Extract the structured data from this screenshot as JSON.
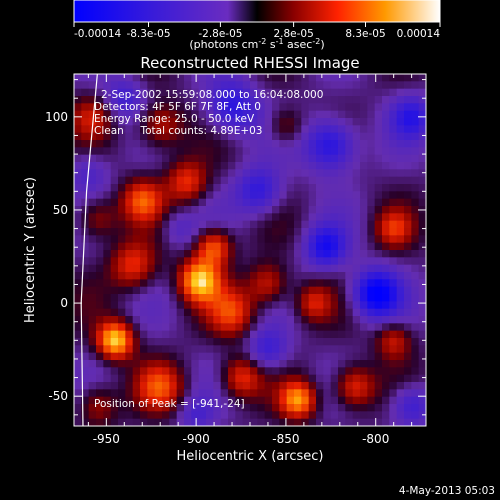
{
  "chart_data": {
    "type": "heatmap",
    "title": "Reconstructed RHESSI Image",
    "xlabel": "Heliocentric X (arcsec)",
    "ylabel": "Heliocentric Y (arcsec)",
    "xlim": [
      -968,
      -772
    ],
    "ylim": [
      -66,
      123
    ],
    "xticks": [
      -950,
      -900,
      -850,
      -800
    ],
    "yticks": [
      -50,
      0,
      50,
      100
    ],
    "colorbar": {
      "ticks": [
        "-0.00014",
        "-8.3e-05",
        "-2.8e-05",
        "2.8e-05",
        "8.3e-05",
        "0.00014"
      ],
      "values": [
        -0.00014,
        -8.3e-05,
        -2.8e-05,
        2.8e-05,
        8.3e-05,
        0.00014
      ],
      "units_prefix": "(photons cm",
      "units_exp1": "-2",
      "units_mid": " s",
      "units_exp2": "-1",
      "units_suffix": " asec",
      "units_exp3": "-2",
      "units_close": ")"
    },
    "annotations": [
      "2-Sep-2002 15:59:08.000 to 16:04:08.000",
      "Detectors: 4F 5F 6F 7F 8F, Att 0",
      "Energy Range: 25.0 - 50.0 keV",
      "Clean     Total counts: 4.89E+03"
    ],
    "peak_label": "Position of Peak = [-941,-24]",
    "sources": [
      {
        "x": -945,
        "y": -20,
        "w": 1.0,
        "r": 7
      },
      {
        "x": -898,
        "y": 12,
        "w": 0.95,
        "r": 8
      },
      {
        "x": -890,
        "y": 30,
        "w": 0.7,
        "r": 7
      },
      {
        "x": -935,
        "y": 20,
        "w": 0.55,
        "r": 9
      },
      {
        "x": -930,
        "y": 55,
        "w": 0.6,
        "r": 8
      },
      {
        "x": -905,
        "y": 65,
        "w": 0.55,
        "r": 8
      },
      {
        "x": -920,
        "y": 95,
        "w": 0.5,
        "r": 9
      },
      {
        "x": -958,
        "y": 100,
        "w": 0.35,
        "r": 8
      },
      {
        "x": -880,
        "y": -5,
        "w": 0.55,
        "r": 9
      },
      {
        "x": -860,
        "y": 10,
        "w": 0.5,
        "r": 8
      },
      {
        "x": -843,
        "y": -52,
        "w": 0.8,
        "r": 7
      },
      {
        "x": -875,
        "y": -40,
        "w": 0.55,
        "r": 8
      },
      {
        "x": -812,
        "y": -45,
        "w": 0.6,
        "r": 8
      },
      {
        "x": -790,
        "y": -20,
        "w": 0.45,
        "r": 7
      },
      {
        "x": -790,
        "y": 40,
        "w": 0.45,
        "r": 7
      },
      {
        "x": -835,
        "y": 0,
        "w": 0.45,
        "r": 7
      },
      {
        "x": -920,
        "y": -45,
        "w": 0.55,
        "r": 9
      },
      {
        "x": -955,
        "y": -55,
        "w": 0.4,
        "r": 8
      },
      {
        "x": -955,
        "y": 45,
        "w": 0.4,
        "r": 8
      },
      {
        "x": -850,
        "y": 95,
        "w": 0.35,
        "r": 7
      },
      {
        "x": -865,
        "y": 60,
        "w": -0.55,
        "r": 9
      },
      {
        "x": -800,
        "y": 5,
        "w": -0.9,
        "r": 9
      },
      {
        "x": -828,
        "y": 30,
        "w": -0.65,
        "r": 8
      },
      {
        "x": -825,
        "y": 85,
        "w": -0.7,
        "r": 10
      },
      {
        "x": -880,
        "y": 105,
        "w": -0.6,
        "r": 10
      },
      {
        "x": -940,
        "y": 110,
        "w": -0.4,
        "r": 8
      },
      {
        "x": -960,
        "y": 70,
        "w": -0.3,
        "r": 8
      },
      {
        "x": -860,
        "y": -25,
        "w": -0.45,
        "r": 8
      },
      {
        "x": -780,
        "y": 100,
        "w": -0.5,
        "r": 8
      },
      {
        "x": -780,
        "y": -55,
        "w": -0.5,
        "r": 8
      },
      {
        "x": -900,
        "y": -60,
        "w": -0.3,
        "r": 7
      },
      {
        "x": -910,
        "y": 40,
        "w": -0.25,
        "r": 7
      }
    ],
    "limb_curve": [
      [
        -955,
        123
      ],
      [
        -961,
        60
      ],
      [
        -964,
        0
      ],
      [
        -963,
        -66
      ]
    ]
  },
  "timestamp": "4-May-2013 05:03",
  "colors": {
    "background": "#000000",
    "foreground": "#ffffff"
  }
}
